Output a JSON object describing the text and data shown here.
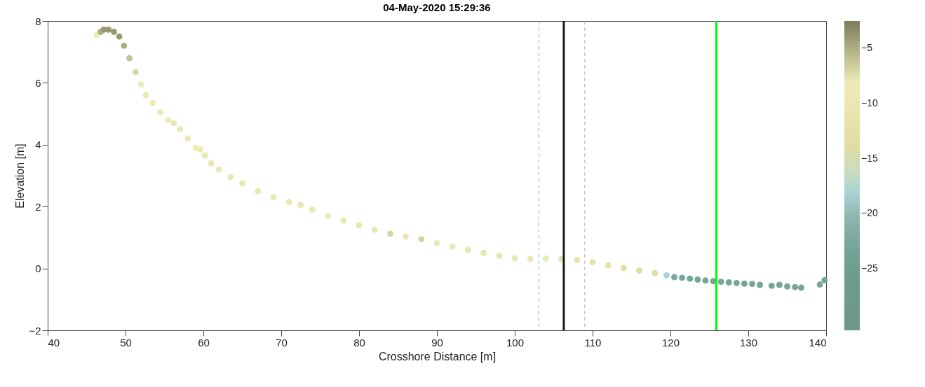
{
  "chart_data": {
    "type": "scatter",
    "title": "04-May-2020 15:29:36",
    "xlabel": "Crosshore Distance [m]",
    "ylabel": "Elevation [m]",
    "x": [
      46.3,
      46.8,
      47.2,
      47.8,
      48.5,
      49.2,
      49.8,
      50.5,
      51.3,
      52,
      52.6,
      53.5,
      54.5,
      55.5,
      56.2,
      57,
      58,
      59,
      59.6,
      60.2,
      61,
      62,
      63.5,
      65,
      67,
      69,
      71,
      72.5,
      74,
      76,
      78,
      80,
      82,
      84,
      86,
      88,
      90,
      92,
      94,
      96,
      98,
      100,
      102,
      104,
      106,
      108,
      110,
      112,
      114,
      116,
      118,
      119.5,
      120.5,
      121.5,
      122.5,
      123.5,
      124.5,
      125.5,
      126.5,
      127.5,
      128.5,
      129.5,
      130.5,
      131.5,
      133,
      134,
      135,
      136,
      136.8,
      139.2,
      139.8
    ],
    "values": [
      7.55,
      7.65,
      7.72,
      7.72,
      7.65,
      7.5,
      7.2,
      6.8,
      6.35,
      5.95,
      5.6,
      5.35,
      5.05,
      4.8,
      4.7,
      4.5,
      4.2,
      3.9,
      3.85,
      3.65,
      3.4,
      3.2,
      2.95,
      2.75,
      2.5,
      2.3,
      2.15,
      2.05,
      1.9,
      1.7,
      1.55,
      1.4,
      1.25,
      1.12,
      1.03,
      0.95,
      0.82,
      0.7,
      0.6,
      0.5,
      0.41,
      0.33,
      0.31,
      0.32,
      0.31,
      0.27,
      0.2,
      0.1,
      0.02,
      -0.07,
      -0.15,
      -0.22,
      -0.28,
      -0.3,
      -0.33,
      -0.36,
      -0.39,
      -0.41,
      -0.43,
      -0.45,
      -0.47,
      -0.49,
      -0.5,
      -0.53,
      -0.56,
      -0.53,
      -0.58,
      -0.6,
      -0.62,
      -0.52,
      -0.38
    ],
    "cvalues": [
      -8,
      -5,
      -4,
      -4,
      -4,
      -4,
      -5,
      -6,
      -7,
      -8,
      -9,
      -9,
      -9,
      -9,
      -10,
      -10,
      -10,
      -9,
      -9,
      -10,
      -10,
      -10,
      -10,
      -10,
      -10,
      -10,
      -10,
      -10,
      -10,
      -8,
      -10,
      -10,
      -10,
      -7,
      -10,
      -7,
      -10,
      -8,
      -10,
      -10,
      -10,
      -10,
      -10,
      -10,
      -11,
      -11,
      -12,
      -12,
      -13,
      -14,
      -14,
      -18,
      -22,
      -23,
      -23,
      -23,
      -23,
      -23,
      -23,
      -23,
      -23,
      -23,
      -23,
      -23,
      -23,
      -23,
      -23,
      -23,
      -23,
      -23,
      -23
    ],
    "xlim": [
      40,
      140
    ],
    "xticks": [
      40,
      50,
      60,
      70,
      80,
      90,
      100,
      110,
      120,
      130,
      140
    ],
    "ylim": [
      -2,
      8
    ],
    "yticks": [
      -2,
      0,
      2,
      4,
      6,
      8
    ],
    "clim": [
      -30.6,
      -2.5
    ],
    "cticks": [
      -5,
      -10,
      -15,
      -20,
      -25
    ],
    "marker": "circle",
    "grid": false,
    "ref_lines": [
      {
        "axis": "x",
        "value": 103.1,
        "color": "#aaaaaa",
        "line_style": "dashed"
      },
      {
        "axis": "x",
        "value": 109.0,
        "color": "#aaaaaa",
        "line_style": "dashed"
      },
      {
        "axis": "x",
        "value": 106.3,
        "color": "#1a1a1a",
        "line_style": "solid"
      },
      {
        "axis": "x",
        "value": 125.9,
        "color": "#00ff00",
        "line_style": "solid"
      }
    ]
  }
}
